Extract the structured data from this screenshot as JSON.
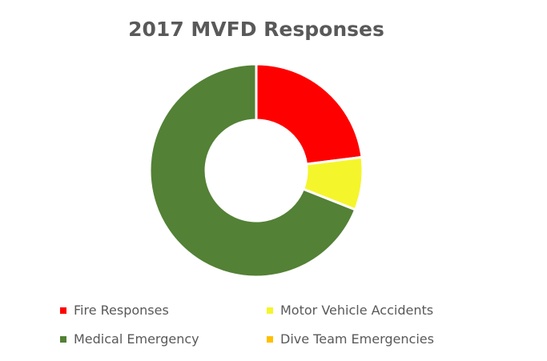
{
  "chart_data": {
    "type": "pie",
    "title": "2017 MVFD Responses",
    "categories": [
      "Fire Responses",
      "Motor Vehicle Accidents",
      "Medical Emergency",
      "Dive Team Emergencies"
    ],
    "values": [
      23,
      8,
      69,
      0
    ],
    "colors": [
      "#ff0000",
      "#f5f52c",
      "#538135",
      "#ffc000"
    ],
    "donut": true,
    "legend_position": "bottom"
  }
}
